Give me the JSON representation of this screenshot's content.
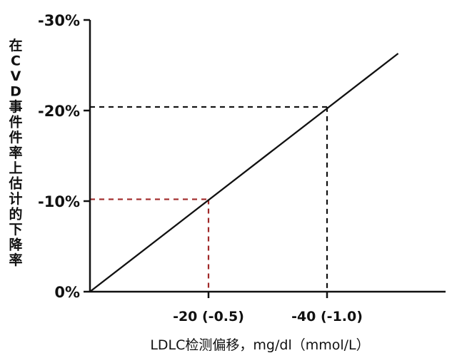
{
  "chart_data": {
    "type": "line",
    "xlabel": "LDLC检测偏移，mg/dl（mmol/L）",
    "ylabel": "在CVD事件件率上估计的下降率",
    "xlim": [
      0,
      -60
    ],
    "ylim": [
      0,
      -30
    ],
    "y_ticks": [
      {
        "value": 0,
        "label": "0%"
      },
      {
        "value": -10,
        "label": "-10%"
      },
      {
        "value": -20,
        "label": "-20%"
      },
      {
        "value": -30,
        "label": "-30%"
      }
    ],
    "x_ticks": [
      {
        "value": -20,
        "label": "-20 (-0.5)"
      },
      {
        "value": -40,
        "label": "-40 (-1.0)"
      }
    ],
    "series": [
      {
        "x": [
          0,
          -52
        ],
        "y": [
          0,
          -26.3
        ],
        "color": "#111111"
      }
    ],
    "guides": [
      {
        "x": -20,
        "y": -10.2,
        "color": "#a02828"
      },
      {
        "x": -40,
        "y": -20.4,
        "color": "#111111"
      }
    ],
    "grid": false
  }
}
